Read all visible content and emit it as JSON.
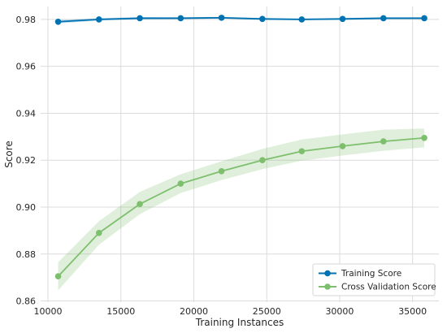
{
  "chart_data": {
    "type": "line",
    "title": "",
    "xlabel": "Training Instances",
    "ylabel": "Score",
    "xlim": [
      9500,
      36800
    ],
    "ylim": [
      0.8595,
      0.9855
    ],
    "x_ticks": [
      10000,
      15000,
      20000,
      25000,
      30000,
      35000
    ],
    "x_tick_labels": [
      "10000",
      "15000",
      "20000",
      "25000",
      "30000",
      "35000"
    ],
    "y_ticks": [
      0.86,
      0.88,
      0.9,
      0.92,
      0.94,
      0.96,
      0.98
    ],
    "y_tick_labels": [
      "0.86",
      "0.88",
      "0.90",
      "0.92",
      "0.94",
      "0.96",
      "0.98"
    ],
    "grid": true,
    "legend_position": "bottom-right",
    "x": [
      10700,
      13500,
      16300,
      19100,
      21900,
      24700,
      27400,
      30200,
      33000,
      35800
    ],
    "series": [
      {
        "name": "Training Score",
        "color": "#0072b2",
        "values": [
          0.979,
          0.98,
          0.9805,
          0.9805,
          0.9807,
          0.9802,
          0.98,
          0.9802,
          0.9805,
          0.9805
        ],
        "band_low": [
          0.9783,
          0.9795,
          0.98,
          0.9801,
          0.9803,
          0.9798,
          0.9796,
          0.9798,
          0.9801,
          0.9801
        ],
        "band_high": [
          0.9797,
          0.9805,
          0.981,
          0.9809,
          0.9811,
          0.9806,
          0.9804,
          0.9806,
          0.9809,
          0.9809
        ]
      },
      {
        "name": "Cross Validation Score",
        "color": "#7ebf6e",
        "values": [
          0.8705,
          0.889,
          0.9013,
          0.91,
          0.9153,
          0.92,
          0.9238,
          0.926,
          0.928,
          0.9295
        ],
        "band_low": [
          0.8645,
          0.884,
          0.897,
          0.906,
          0.9115,
          0.9162,
          0.9198,
          0.922,
          0.924,
          0.9255
        ],
        "band_high": [
          0.8765,
          0.894,
          0.9065,
          0.914,
          0.9195,
          0.9248,
          0.9288,
          0.931,
          0.933,
          0.9335
        ]
      }
    ]
  }
}
